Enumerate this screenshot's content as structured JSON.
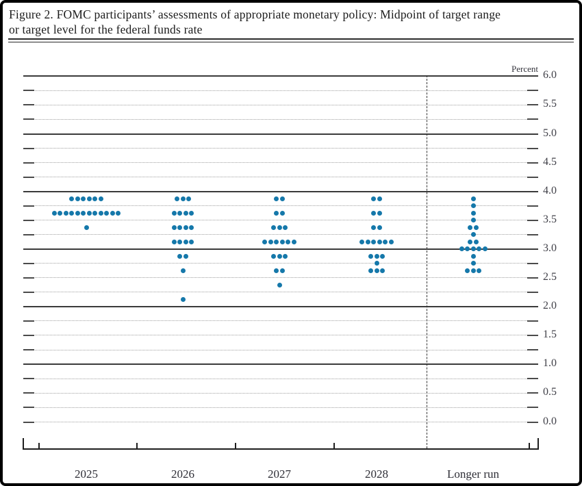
{
  "figure": {
    "title_line1": "Figure 2. FOMC participants’ assessments of appropriate monetary policy: Midpoint of target range",
    "title_line2": "or target level for the federal funds rate"
  },
  "chart_data": {
    "type": "scatter",
    "title": "FOMC participants’ assessments of appropriate monetary policy: Midpoint of target range or target level for the federal funds rate",
    "unit_label": "Percent",
    "ylim": [
      0.0,
      6.0
    ],
    "grid_step": 0.25,
    "solid_gridlines": [
      1.0,
      2.0,
      3.0,
      4.0,
      5.0,
      6.0
    ],
    "ytick_labels": [
      "6.0",
      "5.5",
      "5.0",
      "4.5",
      "4.0",
      "3.5",
      "3.0",
      "2.5",
      "2.0",
      "1.5",
      "1.0",
      "0.5",
      "0.0"
    ],
    "categories": [
      "2025",
      "2026",
      "2027",
      "2028",
      "Longer run"
    ],
    "divider_after_category": "2028",
    "dot_color": "#1578aa",
    "legend_position": "none",
    "series": [
      {
        "category": "2025",
        "dots": [
          {
            "rate": 3.875,
            "count": 6
          },
          {
            "rate": 3.625,
            "count": 12
          },
          {
            "rate": 3.375,
            "count": 1
          }
        ]
      },
      {
        "category": "2026",
        "dots": [
          {
            "rate": 3.875,
            "count": 3
          },
          {
            "rate": 3.625,
            "count": 4
          },
          {
            "rate": 3.375,
            "count": 4
          },
          {
            "rate": 3.125,
            "count": 4
          },
          {
            "rate": 2.875,
            "count": 2
          },
          {
            "rate": 2.625,
            "count": 1
          },
          {
            "rate": 2.125,
            "count": 1
          }
        ]
      },
      {
        "category": "2027",
        "dots": [
          {
            "rate": 3.875,
            "count": 2
          },
          {
            "rate": 3.625,
            "count": 2
          },
          {
            "rate": 3.375,
            "count": 3
          },
          {
            "rate": 3.125,
            "count": 6
          },
          {
            "rate": 2.875,
            "count": 3
          },
          {
            "rate": 2.625,
            "count": 2
          },
          {
            "rate": 2.375,
            "count": 1
          }
        ]
      },
      {
        "category": "2028",
        "dots": [
          {
            "rate": 3.875,
            "count": 2
          },
          {
            "rate": 3.625,
            "count": 2
          },
          {
            "rate": 3.375,
            "count": 2
          },
          {
            "rate": 3.125,
            "count": 6
          },
          {
            "rate": 2.875,
            "count": 3
          },
          {
            "rate": 2.75,
            "count": 1
          },
          {
            "rate": 2.625,
            "count": 3
          }
        ]
      },
      {
        "category": "Longer run",
        "dots": [
          {
            "rate": 3.875,
            "count": 1
          },
          {
            "rate": 3.75,
            "count": 1
          },
          {
            "rate": 3.625,
            "count": 1
          },
          {
            "rate": 3.5,
            "count": 1
          },
          {
            "rate": 3.375,
            "count": 2
          },
          {
            "rate": 3.25,
            "count": 1
          },
          {
            "rate": 3.125,
            "count": 2
          },
          {
            "rate": 3.0,
            "count": 5
          },
          {
            "rate": 2.875,
            "count": 1
          },
          {
            "rate": 2.75,
            "count": 1
          },
          {
            "rate": 2.625,
            "count": 3
          }
        ]
      }
    ]
  }
}
